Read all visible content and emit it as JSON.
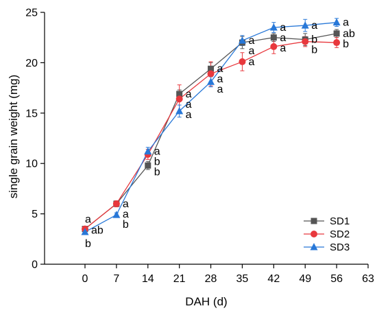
{
  "chart_data": {
    "type": "line",
    "xlabel": "DAH (d)",
    "ylabel": "single grain weight (mg)",
    "xlim": [
      -9,
      63
    ],
    "ylim": [
      0,
      25
    ],
    "x": [
      0,
      7,
      14,
      21,
      28,
      35,
      42,
      49,
      56
    ],
    "xticks": [
      0,
      7,
      14,
      21,
      28,
      35,
      42,
      49,
      56,
      63
    ],
    "yticks": [
      0,
      5,
      10,
      15,
      20,
      25
    ],
    "grid": false,
    "legend_position": "bottom-right",
    "series": [
      {
        "name": "SD1",
        "color": "#555555",
        "marker": "square",
        "values": [
          3.5,
          6.0,
          9.8,
          16.9,
          19.4,
          22.0,
          22.5,
          22.3,
          22.9
        ],
        "errors": [
          0.2,
          0.3,
          0.4,
          0.4,
          0.6,
          0.6,
          0.4,
          0.6,
          0.4
        ],
        "letters": [
          "a",
          "a",
          "b",
          "a",
          "a",
          "a",
          "a",
          "b",
          "ab"
        ]
      },
      {
        "name": "SD2",
        "color": "#e8383d",
        "marker": "circle",
        "values": [
          3.5,
          6.0,
          10.9,
          16.4,
          18.9,
          20.1,
          21.6,
          22.1,
          22.0
        ],
        "errors": [
          0.2,
          0.3,
          0.5,
          1.4,
          1.2,
          0.9,
          0.7,
          0.5,
          0.5
        ],
        "letters": [
          "ab",
          "a",
          "b",
          "a",
          "a",
          "a",
          "a",
          "b",
          "b"
        ]
      },
      {
        "name": "SD3",
        "color": "#2878d8",
        "marker": "triangle",
        "values": [
          3.2,
          4.9,
          11.2,
          15.2,
          18.1,
          22.2,
          23.5,
          23.7,
          24.0
        ],
        "errors": [
          0.2,
          0.2,
          0.4,
          0.6,
          0.5,
          0.5,
          0.5,
          0.6,
          0.4
        ],
        "letters": [
          "b",
          "b",
          "a",
          "a",
          "a",
          "a",
          "a",
          "a",
          "a"
        ]
      }
    ]
  }
}
